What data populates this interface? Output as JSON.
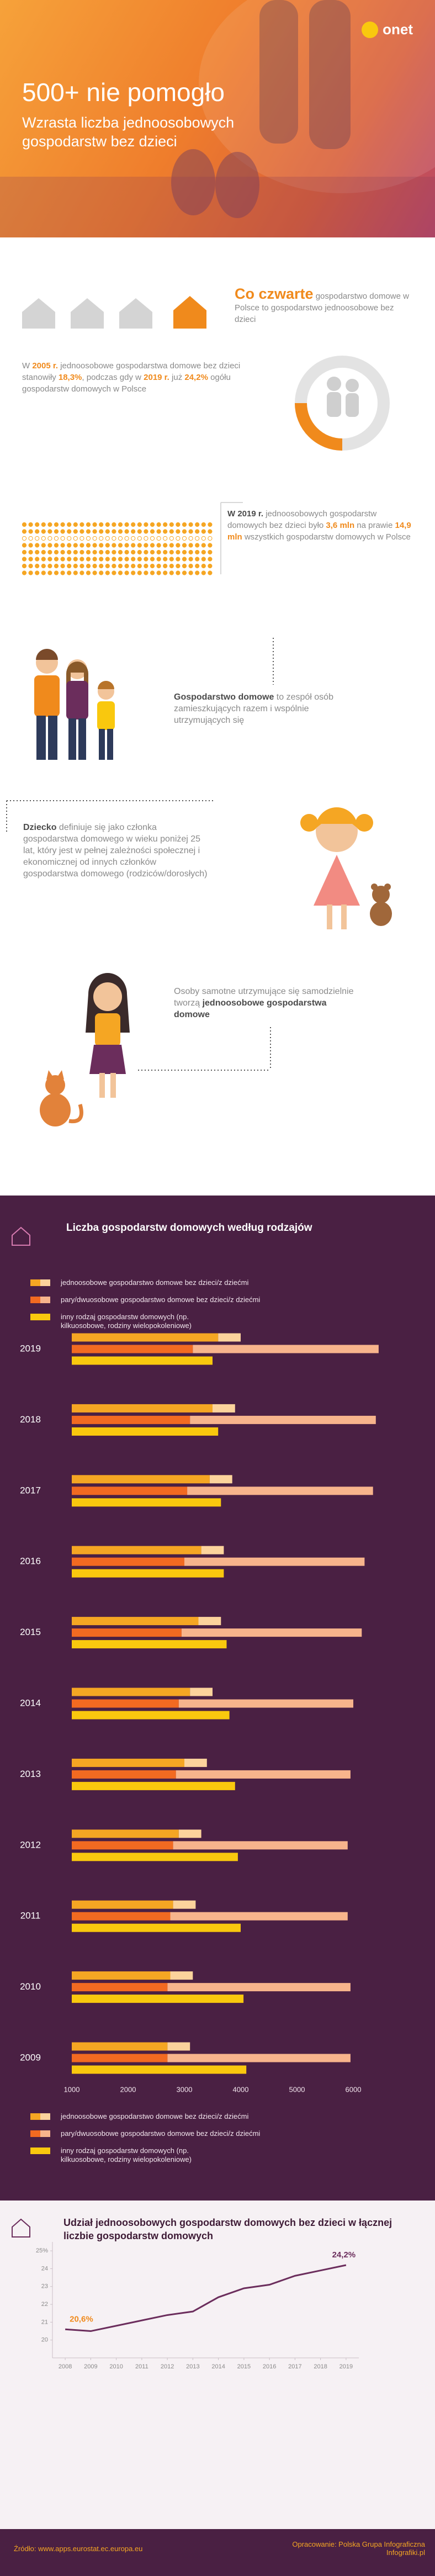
{
  "header": {
    "logo": "onet",
    "title": "500+ nie pomogło",
    "subtitle": "Wzrasta liczba jednoosobowych gospodarstw bez dzieci"
  },
  "facts": {
    "quarter": {
      "lead": "Co czwarte",
      "text": "gospodarstwo domowe w Polsce to gospodarstwo jednoosobowe bez dzieci"
    },
    "share": [
      "W ",
      "2005 r.",
      " jednoosobowe gospodarstwa domowe bez dzieci stanowiły ",
      "18,3%",
      ", podczas gdy w ",
      "2019 r.",
      " już ",
      "24,2%",
      " ogółu gospodarstw domowych w Polsce"
    ],
    "count": [
      "W 2019 r.",
      " jednoosobowych gospodarstw domowych bez dzieci było ",
      "3,6 mln",
      " na prawie ",
      "14,9 mln",
      " wszystkich gospodarstw domowych w Polsce"
    ],
    "household": [
      "Gospodarstwo domowe",
      " to zespół osób zamieszkujących razem i wspólnie utrzymujących się"
    ],
    "child": [
      "Dziecko",
      " definiuje się jako członka gospodarstwa domowego w wieku poniżej 25 lat, który jest w pełnej zależności społecznej i ekonomicznej od innych członków gospodarstwa domowego (rodziców/dorosłych)"
    ],
    "single": [
      "Osoby samotne utrzymujące się samodzielnie tworzą ",
      "jednoosobowe gospodarstwa domowe"
    ]
  },
  "chart_data": [
    {
      "type": "bar",
      "orientation": "horizontal",
      "title": "Liczba gospodarstw domowych według rodzajów",
      "categories": [
        "2019",
        "2018",
        "2017",
        "2016",
        "2015",
        "2014",
        "2013",
        "2012",
        "2011",
        "2010",
        "2009"
      ],
      "groups": [
        {
          "name": "jednoosobowe gospodarstwo domowe bez dzieci/z dziećmi",
          "series": [
            {
              "color": "#f5a623",
              "values": [
                3600,
                3500,
                3450,
                3300,
                3250,
                3100,
                3000,
                2900,
                2800,
                2750,
                2700
              ]
            },
            {
              "color": "#fcd39c",
              "values": [
                400,
                400,
                400,
                400,
                400,
                400,
                400,
                400,
                400,
                400,
                400
              ]
            }
          ]
        },
        {
          "name": "pary/dwuosobowe gospodarstwo domowe bez dzieci/z dziećmi",
          "series": [
            {
              "color": "#f26a21",
              "values": [
                3150,
                3100,
                3050,
                3000,
                2950,
                2900,
                2850,
                2800,
                2750,
                2700,
                2700
              ]
            },
            {
              "color": "#f7b48c",
              "values": [
                3300,
                3300,
                3300,
                3200,
                3200,
                3100,
                3100,
                3100,
                3150,
                3250,
                3250
              ]
            }
          ]
        },
        {
          "name": "inny rodzaj gospodarstw domowych (np. kilkuosobowe, rodziny wielopokoleniowe)",
          "series": [
            {
              "color": "#f9c80e",
              "values": [
                3500,
                3600,
                3650,
                3700,
                3750,
                3800,
                3900,
                3950,
                4000,
                4050,
                4100
              ]
            }
          ]
        }
      ],
      "xlim": [
        1000,
        6500
      ],
      "xticks": [
        1000,
        2000,
        3000,
        4000,
        5000,
        6000
      ]
    },
    {
      "type": "line",
      "title": "Udział jednoosobowych gospodarstw domowych bez dzieci w łącznej liczbie gospodarstw domowych",
      "x": [
        2008,
        2009,
        2010,
        2011,
        2012,
        2013,
        2014,
        2015,
        2016,
        2017,
        2018,
        2019
      ],
      "series": [
        {
          "color": "#6b2d5c",
          "values": [
            20.6,
            20.5,
            20.8,
            21.1,
            21.4,
            21.6,
            22.4,
            22.9,
            23.1,
            23.6,
            23.9,
            24.2
          ],
          "value_labels": [
            "20,6%",
            null,
            null,
            null,
            null,
            null,
            null,
            null,
            null,
            null,
            null,
            "24,2%"
          ]
        }
      ],
      "xlim": [
        2007.5,
        2019.5
      ],
      "xticks": [
        2008,
        2009,
        2010,
        2011,
        2012,
        2013,
        2014,
        2015,
        2016,
        2017,
        2018,
        2019
      ],
      "ylim": [
        19,
        25.5
      ],
      "yticks": [
        20,
        21,
        22,
        23,
        24,
        {
          "value": 25,
          "label": "25%"
        }
      ]
    }
  ],
  "footer": {
    "source": "Źródło: www.apps.eurostat.ec.europa.eu",
    "credit": "Opracowanie: Polska Grupa Infograficzna Infografiki.pl"
  }
}
